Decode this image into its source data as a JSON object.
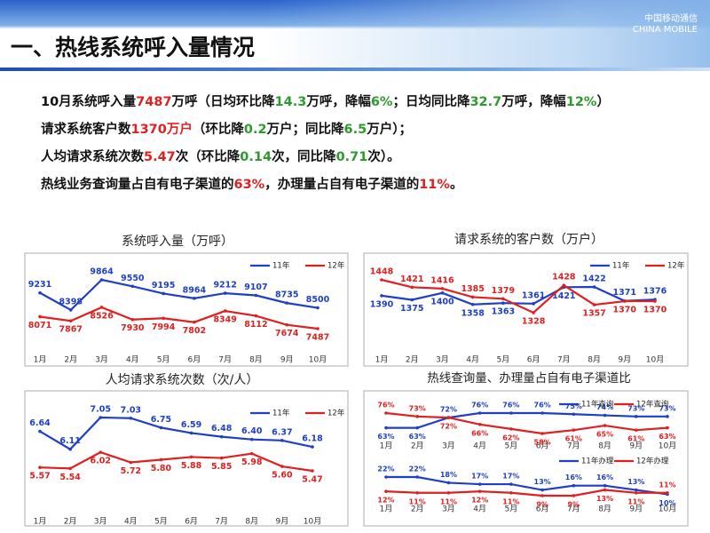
{
  "header": {
    "title": "一、热线系统呼入量情况",
    "logo": "中国移动通信",
    "logo_en": "CHINA MOBILE"
  },
  "text_lines": [
    {
      "runs": [
        {
          "text": "10月系统呼入量",
          "color": "#111111"
        },
        {
          "text": "7487",
          "color": "#e02020"
        },
        {
          "text": "万呼（日均环比降",
          "color": "#111111"
        },
        {
          "text": "14.3",
          "color": "#2e9a2e"
        },
        {
          "text": "万呼，降幅",
          "color": "#111111"
        },
        {
          "text": "6%",
          "color": "#2e9a2e"
        },
        {
          "text": "；日均同比降",
          "color": "#111111"
        },
        {
          "text": "32.7",
          "color": "#2e9a2e"
        },
        {
          "text": "万呼，降幅",
          "color": "#111111"
        },
        {
          "text": "12%",
          "color": "#2e9a2e"
        },
        {
          "text": "）",
          "color": "#111111"
        }
      ]
    },
    {
      "runs": [
        {
          "text": "请求系统客户数",
          "color": "#111111"
        },
        {
          "text": "1370万户",
          "color": "#e02020"
        },
        {
          "text": "（环比降",
          "color": "#111111"
        },
        {
          "text": "0.2",
          "color": "#2e9a2e"
        },
        {
          "text": "万户；同比降",
          "color": "#111111"
        },
        {
          "text": "6.5",
          "color": "#2e9a2e"
        },
        {
          "text": "万户）；",
          "color": "#111111"
        }
      ]
    },
    {
      "runs": [
        {
          "text": "人均请求系统次数",
          "color": "#111111"
        },
        {
          "text": "5.47",
          "color": "#e02020"
        },
        {
          "text": "次（环比降",
          "color": "#111111"
        },
        {
          "text": "0.14",
          "color": "#2e9a2e"
        },
        {
          "text": "次，同比降",
          "color": "#111111"
        },
        {
          "text": "0.71",
          "color": "#2e9a2e"
        },
        {
          "text": "次）。",
          "color": "#111111"
        }
      ]
    },
    {
      "runs": [
        {
          "text": "热线业务查询量占自有电子渠道的",
          "color": "#111111"
        },
        {
          "text": "63%",
          "color": "#e02020"
        },
        {
          "text": "，办理量占自有电子渠道的",
          "color": "#111111"
        },
        {
          "text": "11%",
          "color": "#e02020"
        },
        {
          "text": "。",
          "color": "#111111"
        }
      ]
    }
  ],
  "chart_data": [
    {
      "type": "line",
      "title": "系统呼入量（万呼）",
      "categories": [
        "1月",
        "2月",
        "3月",
        "4月",
        "5月",
        "6月",
        "7月",
        "8月",
        "9月",
        "10月"
      ],
      "series": [
        {
          "name": "11年",
          "color": "#1f3fc4",
          "values": [
            9231,
            8398,
            9864,
            9550,
            9195,
            8964,
            9212,
            9107,
            8735,
            8500
          ]
        },
        {
          "name": "12年",
          "color": "#e02020",
          "values": [
            8071,
            7867,
            8526,
            7930,
            7994,
            7802,
            8349,
            8112,
            7674,
            7487
          ]
        }
      ]
    },
    {
      "type": "line",
      "title": "请求系统的客户数（万户）",
      "categories": [
        "1月",
        "2月",
        "3月",
        "4月",
        "5月",
        "6月",
        "7月",
        "8月",
        "9月",
        "10月"
      ],
      "series": [
        {
          "name": "11年",
          "color": "#1f3fc4",
          "values": [
            1390,
            1375,
            1400,
            1358,
            1363,
            1361,
            1421,
            1422,
            1371,
            1376
          ]
        },
        {
          "name": "12年",
          "color": "#e02020",
          "values": [
            1448,
            1421,
            1416,
            1385,
            1379,
            1328,
            1428,
            1357,
            1370,
            1370
          ]
        }
      ]
    },
    {
      "type": "line",
      "title": "人均请求系统次数（次/人）",
      "categories": [
        "1月",
        "2月",
        "3月",
        "4月",
        "5月",
        "6月",
        "7月",
        "8月",
        "9月",
        "10月"
      ],
      "series": [
        {
          "name": "11年",
          "color": "#1f3fc4",
          "values": [
            6.64,
            6.11,
            7.05,
            7.03,
            6.75,
            6.59,
            6.48,
            6.4,
            6.37,
            6.18
          ],
          "value_labels": [
            "6.64",
            "6.11",
            "7.05",
            "7.03",
            "6.75",
            "6.59",
            "6.48",
            "6.40",
            "6.37",
            "6.18"
          ]
        },
        {
          "name": "12年",
          "color": "#e02020",
          "values": [
            5.57,
            5.54,
            6.02,
            5.72,
            5.8,
            5.88,
            5.85,
            5.98,
            5.6,
            5.47
          ],
          "value_labels": [
            "5.57",
            "5.54",
            "6.02",
            "5.72",
            "5.80",
            "5.88",
            "5.85",
            "5.98",
            "5.60",
            "5.47"
          ]
        }
      ]
    },
    {
      "type": "line",
      "title": "热线查询量、办理量占自有电子渠道比",
      "categories": [
        "1月",
        "2月",
        "3月",
        "4月",
        "5月",
        "6月",
        "7月",
        "8月",
        "9月",
        "10月"
      ],
      "series": [
        {
          "name": "11年查询",
          "color": "#1f3fc4",
          "values": [
            63,
            63,
            72,
            76,
            76,
            76,
            75,
            74,
            73,
            73
          ],
          "value_labels": [
            "63%",
            "63%",
            "72%",
            "76%",
            "76%",
            "76%",
            "75%",
            "74%",
            "73%",
            "73%"
          ]
        },
        {
          "name": "12年查询",
          "color": "#e02020",
          "values": [
            76,
            73,
            72,
            66,
            62,
            58,
            61,
            65,
            61,
            63
          ],
          "value_labels": [
            "76%",
            "73%",
            "72%",
            "66%",
            "62%",
            "58%",
            "61%",
            "65%",
            "61%",
            "63%"
          ]
        }
      ]
    },
    {
      "type": "line",
      "categories": [
        "1月",
        "2月",
        "3月",
        "4月",
        "5月",
        "6月",
        "7月",
        "8月",
        "9月",
        "10月"
      ],
      "series": [
        {
          "name": "11年办理",
          "color": "#1f3fc4",
          "values": [
            22,
            22,
            18,
            17,
            17,
            13,
            16,
            16,
            13,
            10
          ],
          "value_labels": [
            "22%",
            "22%",
            "18%",
            "17%",
            "17%",
            "13%",
            "16%",
            "16%",
            "13%",
            "10%"
          ]
        },
        {
          "name": "12年办理",
          "color": "#e02020",
          "values": [
            12,
            11,
            11,
            12,
            11,
            9,
            9,
            13,
            11,
            11
          ],
          "value_labels": [
            "12%",
            "11%",
            "11%",
            "12%",
            "11%",
            "9%",
            "9%",
            "13%",
            "11%",
            "11%"
          ]
        }
      ]
    }
  ]
}
